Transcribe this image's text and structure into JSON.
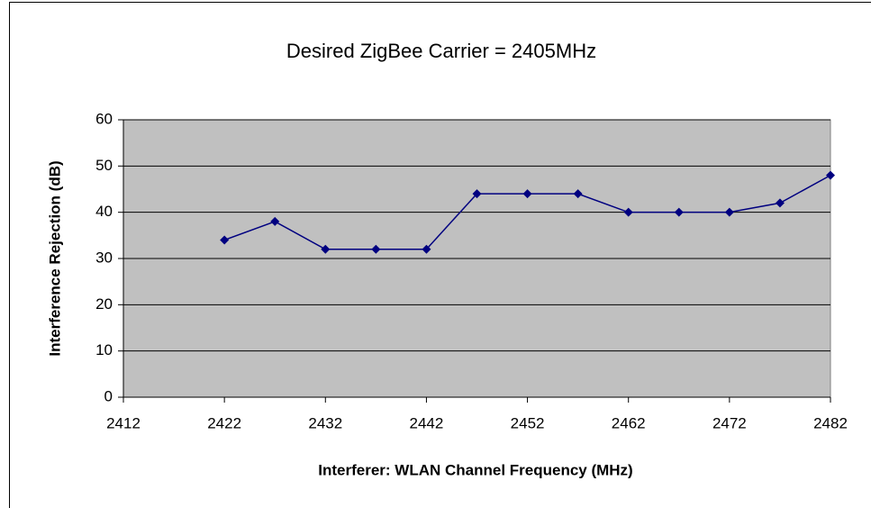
{
  "chart_data": {
    "type": "line",
    "title": "Desired ZigBee Carrier = 2405MHz",
    "xlabel": "Interferer: WLAN Channel Frequency (MHz)",
    "ylabel": "Interference Rejection (dB)",
    "x": [
      2422,
      2427,
      2432,
      2437,
      2442,
      2447,
      2452,
      2457,
      2462,
      2467,
      2472,
      2477,
      2482
    ],
    "series": [
      {
        "color": "#000080",
        "values": [
          34,
          38,
          32,
          32,
          32,
          44,
          44,
          44,
          40,
          40,
          40,
          42,
          48
        ]
      }
    ],
    "xlim": [
      2412,
      2482
    ],
    "xticks": [
      2412,
      2422,
      2432,
      2442,
      2452,
      2462,
      2472,
      2482
    ],
    "ylim": [
      0,
      60
    ],
    "yticks": [
      0,
      10,
      20,
      30,
      40,
      50,
      60
    ],
    "grid": true,
    "plot_background": "#c0c0c0"
  }
}
